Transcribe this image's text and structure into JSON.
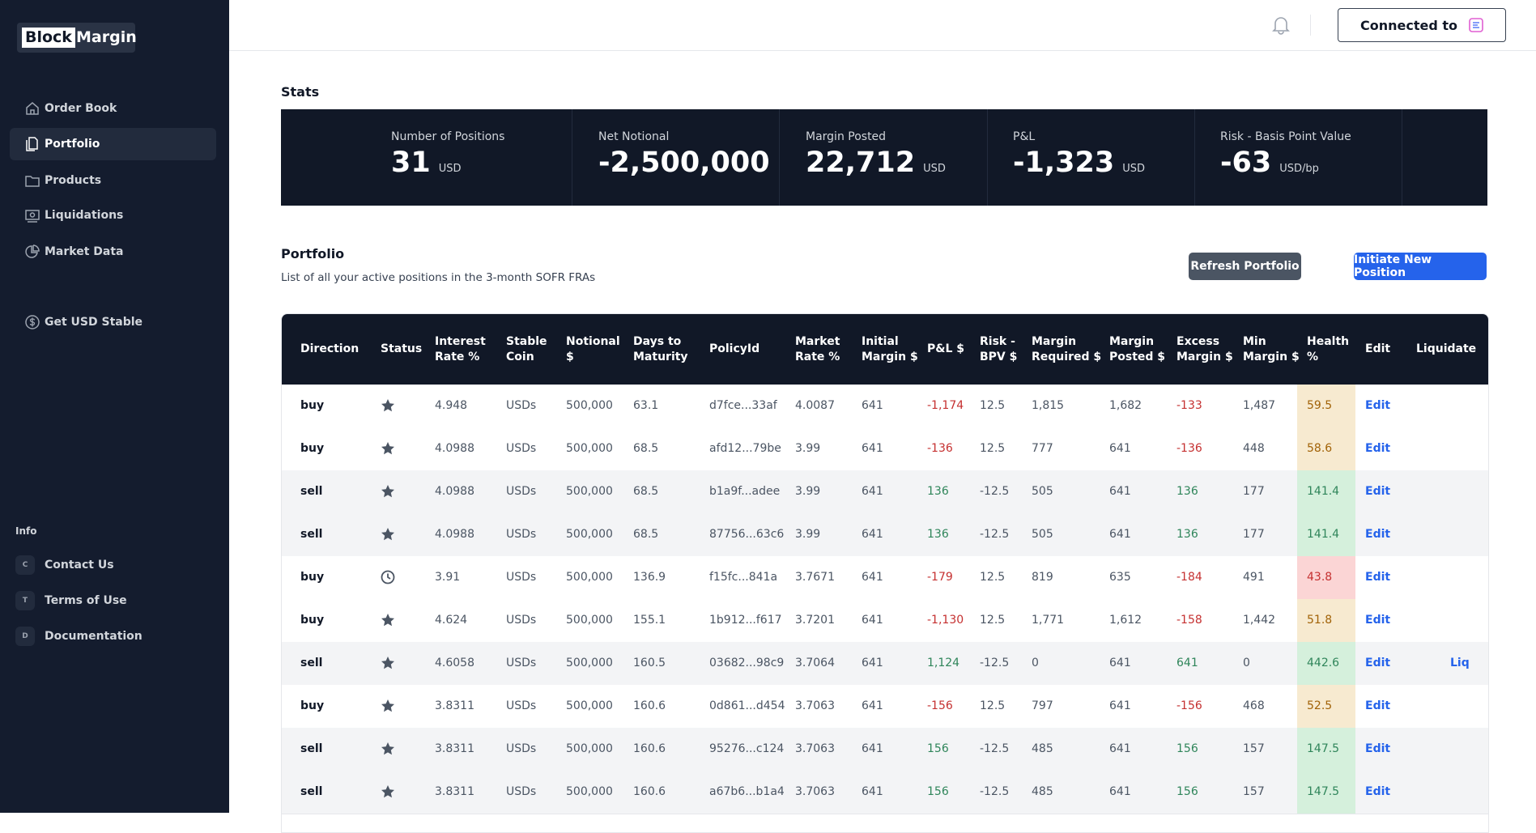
{
  "sidebar": {
    "logo": [
      "Block",
      "Margin"
    ],
    "nav": [
      "Order Book",
      "Portfolio",
      "Products",
      "Liquidations",
      "Market Data"
    ],
    "extra": "Get USD Stable",
    "info_heading": "Info",
    "info_links": [
      {
        "badge": "C",
        "label": "Contact Us"
      },
      {
        "badge": "T",
        "label": "Terms of Use"
      },
      {
        "badge": "D",
        "label": "Documentation"
      }
    ]
  },
  "header": {
    "connected": "Connected to"
  },
  "stats": {
    "title": "Stats",
    "items": [
      {
        "label": "Number of Positions",
        "value": "31",
        "unit": "USD"
      },
      {
        "label": "Net Notional",
        "value": "-2,500,000"
      },
      {
        "label": "Margin Posted",
        "value": "22,712",
        "unit": "USD"
      },
      {
        "label": "P&L",
        "value": "-1,323",
        "unit": "USD"
      },
      {
        "label": "Risk - Basis Point Value",
        "value": "-63",
        "unit": "USD/bp"
      }
    ]
  },
  "portfolio": {
    "title": "Portfolio",
    "subtitle": "List of all your active positions in the 3-month SOFR FRAs",
    "buttons": [
      "Refresh Portfolio",
      "Initiate New Position"
    ],
    "table": {
      "columns": [
        "Direction",
        "Status",
        "Interest Rate %",
        "Stable Coin",
        "Notional $",
        "Days to Maturity",
        "PolicyId",
        "Market Rate %",
        "Initial Margin $",
        "P&L $",
        "Risk - BPV $",
        "Margin Required $",
        "Margin Posted $",
        "Excess Margin $",
        "Min Margin $",
        "Health %",
        "Edit",
        "Liquidate"
      ],
      "rows": [
        [
          "buy",
          "4.948",
          "USDs",
          "500,000",
          "63.1",
          "d7fce...33af",
          "4.0087",
          "641",
          "-1,174",
          "12.5",
          "1,815",
          "1,682",
          "-133",
          "1,487",
          "59.5",
          "Edit"
        ],
        [
          "buy",
          "4.0988",
          "USDs",
          "500,000",
          "68.5",
          "afd12...79be",
          "3.99",
          "641",
          "-136",
          "12.5",
          "777",
          "641",
          "-136",
          "448",
          "58.6",
          "Edit"
        ],
        [
          "sell",
          "4.0988",
          "USDs",
          "500,000",
          "68.5",
          "b1a9f...adee",
          "3.99",
          "641",
          "136",
          "-12.5",
          "505",
          "641",
          "136",
          "177",
          "141.4",
          "Edit"
        ],
        [
          "sell",
          "4.0988",
          "USDs",
          "500,000",
          "68.5",
          "87756...63c6",
          "3.99",
          "641",
          "136",
          "-12.5",
          "505",
          "641",
          "136",
          "177",
          "141.4",
          "Edit"
        ],
        [
          "buy",
          "3.91",
          "USDs",
          "500,000",
          "136.9",
          "f15fc...841a",
          "3.7671",
          "641",
          "-179",
          "12.5",
          "819",
          "635",
          "-184",
          "491",
          "43.8",
          "Edit"
        ],
        [
          "buy",
          "4.624",
          "USDs",
          "500,000",
          "155.1",
          "1b912...f617",
          "3.7201",
          "641",
          "-1,130",
          "12.5",
          "1,771",
          "1,612",
          "-158",
          "1,442",
          "51.8",
          "Edit"
        ],
        [
          "sell",
          "4.6058",
          "USDs",
          "500,000",
          "160.5",
          "03682...98c9",
          "3.7064",
          "641",
          "1,124",
          "-12.5",
          "0",
          "641",
          "641",
          "0",
          "442.6",
          "Edit",
          "Liq"
        ],
        [
          "buy",
          "3.8311",
          "USDs",
          "500,000",
          "160.6",
          "0d861...d454",
          "3.7063",
          "641",
          "-156",
          "12.5",
          "797",
          "641",
          "-156",
          "468",
          "52.5",
          "Edit"
        ],
        [
          "sell",
          "3.8311",
          "USDs",
          "500,000",
          "160.6",
          "95276...c124",
          "3.7063",
          "641",
          "156",
          "-12.5",
          "485",
          "641",
          "156",
          "157",
          "147.5",
          "Edit"
        ],
        [
          "sell",
          "3.8311",
          "USDs",
          "500,000",
          "160.6",
          "a67b6...b1a4",
          "3.7063",
          "641",
          "156",
          "-12.5",
          "485",
          "641",
          "156",
          "157",
          "147.5",
          "Edit"
        ]
      ]
    }
  }
}
